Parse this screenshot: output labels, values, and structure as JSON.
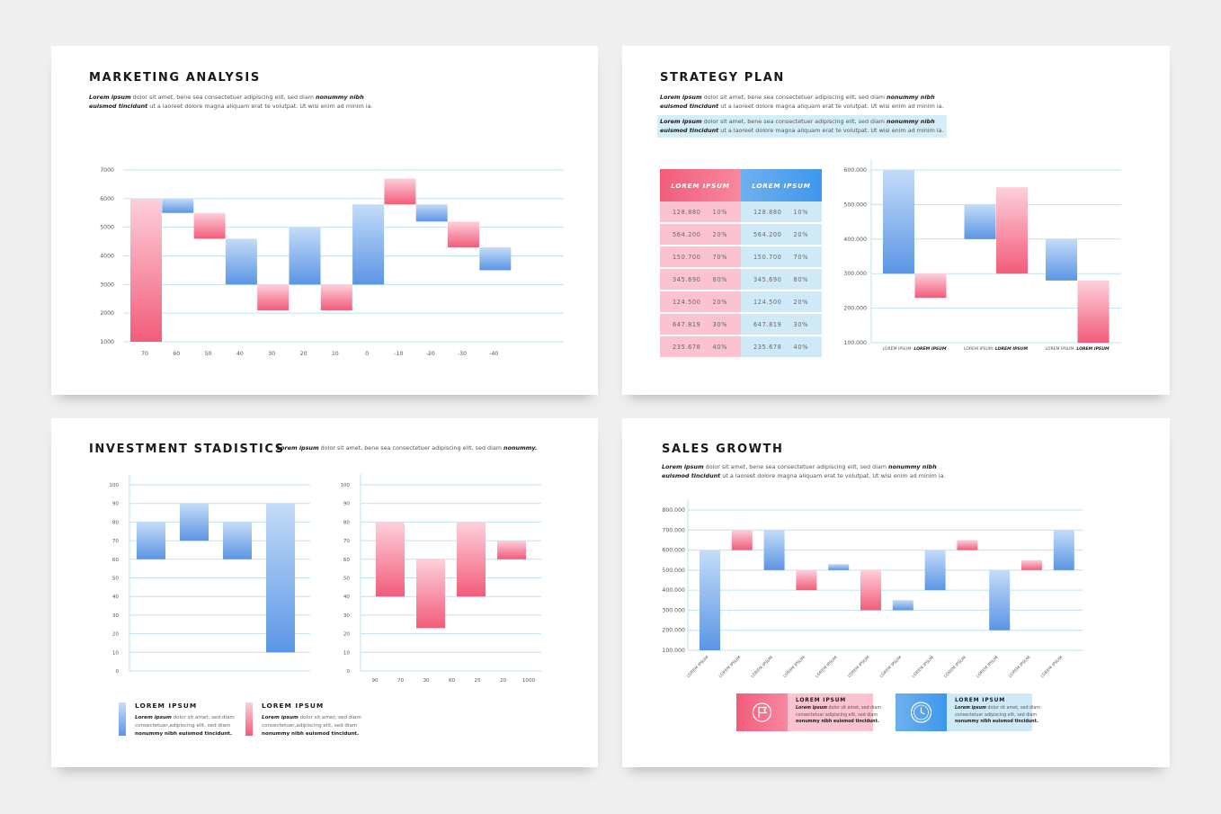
{
  "colors": {
    "pink": "#f25c7a",
    "blue": "#5b95e5",
    "grid": "#bfe2ef",
    "card": "#ffffff",
    "bg": "#efefef"
  },
  "lorem": {
    "bold": "Lorem ipsum",
    "line1": " dolor sit amet, bene sea consectetuer adipiscing elit, sed diam ",
    "bold2": "nonummy nibh",
    "bold3": "euismod tincidunt",
    "line2": " ut a laoreet dolore magna aliquam erat te volutpat. Ut wisi enim ad minim ia."
  },
  "marketing": {
    "title": "MARKETING ANALYSIS",
    "chart_data": {
      "type": "bar",
      "subtype": "waterfall",
      "categories": [
        "70",
        "60",
        "50",
        "40",
        "30",
        "20",
        "10",
        "0",
        "-10",
        "-20",
        "-30",
        "-40"
      ],
      "yticks": [
        "7000",
        "6000",
        "5000",
        "4000",
        "3000",
        "2000",
        "1000"
      ],
      "ylim": [
        1000,
        7000
      ],
      "bars": [
        {
          "from": 1000,
          "to": 6000,
          "color": "pink"
        },
        {
          "from": 5500,
          "to": 6000,
          "color": "blue"
        },
        {
          "from": 4600,
          "to": 5500,
          "color": "pink"
        },
        {
          "from": 3000,
          "to": 4600,
          "color": "blue"
        },
        {
          "from": 2100,
          "to": 3000,
          "color": "pink"
        },
        {
          "from": 3000,
          "to": 5000,
          "color": "blue"
        },
        {
          "from": 2100,
          "to": 3000,
          "color": "pink"
        },
        {
          "from": 3000,
          "to": 5800,
          "color": "blue"
        },
        {
          "from": 5800,
          "to": 6700,
          "color": "pink"
        },
        {
          "from": 5200,
          "to": 5800,
          "color": "blue"
        },
        {
          "from": 4300,
          "to": 5200,
          "color": "pink"
        },
        {
          "from": 3500,
          "to": 4300,
          "color": "blue"
        }
      ]
    }
  },
  "strategy": {
    "title": "STRATEGY PLAN",
    "table": {
      "headers": [
        "LOREM IPSUM",
        "LOREM IPSUM"
      ],
      "rows": [
        [
          "128.880",
          "10%",
          "128.880",
          "10%"
        ],
        [
          "564.200",
          "20%",
          "564.200",
          "20%"
        ],
        [
          "150.700",
          "70%",
          "150.700",
          "70%"
        ],
        [
          "345.690",
          "80%",
          "345.690",
          "80%"
        ],
        [
          "124.500",
          "20%",
          "124.500",
          "20%"
        ],
        [
          "647.819",
          "30%",
          "647.819",
          "30%"
        ],
        [
          "235.678",
          "40%",
          "235.678",
          "40%"
        ]
      ]
    },
    "chart_data": {
      "type": "bar",
      "subtype": "floating",
      "yticks": [
        "600.000",
        "500.000",
        "400.000",
        "300.000",
        "200.000",
        "100.000"
      ],
      "ylim": [
        100000,
        600000
      ],
      "bars": [
        {
          "from": 300000,
          "to": 600000,
          "color": "blue"
        },
        {
          "from": 230000,
          "to": 300000,
          "color": "pink"
        },
        {
          "from": 400000,
          "to": 500000,
          "color": "blue"
        },
        {
          "from": 300000,
          "to": 550000,
          "color": "pink"
        },
        {
          "from": 280000,
          "to": 400000,
          "color": "blue"
        },
        {
          "from": 100000,
          "to": 280000,
          "color": "pink"
        }
      ],
      "group_labels": [
        {
          "a": "LOREM IPSUM",
          "b": "LOREM IPSUM"
        },
        {
          "a": "LOREM IPSUM",
          "b": "LOREM IPSUM"
        },
        {
          "a": "LOREM IPSUM",
          "b": "LOREM IPSUM"
        }
      ]
    }
  },
  "investment": {
    "title": "INVESTMENT STADISTICS",
    "intro_rest": " dolor sit amet, bene sea consectetuer adipiscing elit, sed diam ",
    "intro_bold": "nonummy.",
    "chart_data": [
      {
        "type": "bar",
        "subtype": "floating",
        "yticks": [
          "100",
          "90",
          "80",
          "70",
          "60",
          "50",
          "40",
          "30",
          "20",
          "10",
          "0"
        ],
        "ylim": [
          0,
          100
        ],
        "bars": [
          {
            "from": 60,
            "to": 80,
            "color": "blue"
          },
          {
            "from": 70,
            "to": 90,
            "color": "blue"
          },
          {
            "from": 60,
            "to": 80,
            "color": "blue"
          },
          {
            "from": 10,
            "to": 90,
            "color": "blue"
          }
        ]
      },
      {
        "type": "bar",
        "subtype": "floating",
        "categories": [
          "90",
          "70",
          "30",
          "60",
          "25",
          "20",
          "1000"
        ],
        "yticks": [
          "100",
          "90",
          "80",
          "70",
          "60",
          "50",
          "40",
          "30",
          "20",
          "10",
          "0"
        ],
        "ylim": [
          0,
          100
        ],
        "bars": [
          {
            "from": 40,
            "to": 80,
            "color": "pink"
          },
          {
            "from": 23,
            "to": 60,
            "color": "pink"
          },
          {
            "from": 40,
            "to": 80,
            "color": "pink"
          },
          {
            "from": 60,
            "to": 70,
            "color": "pink"
          }
        ]
      }
    ],
    "legend": [
      {
        "title": "LOREM IPSUM",
        "bold": "Lorem ipsum",
        "l1": " dolor sit amet, sed diam",
        "l2": "consectetuer,adipiscing elit, sed diam",
        "l3": "nonummy nibh euismod tincidunt.",
        "color": "blue"
      },
      {
        "title": "LOREM IPSUM",
        "bold": "Lorem ipsum",
        "l1": " dolor sit amet, sed diam",
        "l2": "consectetuer,adipiscing elit, sed diam",
        "l3": "nonummy nibh euismod tincidunt.",
        "color": "pink"
      }
    ]
  },
  "sales": {
    "title": "SALES GROWTH",
    "chart_data": {
      "type": "bar",
      "subtype": "floating",
      "categories": [
        "LOREM IPSUM",
        "LOREM IPSUM",
        "LOREM IPSUM",
        "LOREM IPSUM",
        "LOREM IPSUM",
        "LOREM IPSUM",
        "LOREM IPSUM",
        "LOREM IPSUM",
        "LOREM IPSUM",
        "LOREM IPSUM",
        "LOREM IPSUM",
        "LOREM IPSUM"
      ],
      "yticks": [
        "800.000",
        "700.000",
        "600.000",
        "500.000",
        "400.000",
        "300.000",
        "200.000",
        "100.000"
      ],
      "ylim": [
        100000,
        800000
      ],
      "bars": [
        {
          "from": 100000,
          "to": 600000,
          "color": "blue"
        },
        {
          "from": 600000,
          "to": 700000,
          "color": "pink"
        },
        {
          "from": 500000,
          "to": 700000,
          "color": "blue"
        },
        {
          "from": 400000,
          "to": 500000,
          "color": "pink"
        },
        {
          "from": 500000,
          "to": 530000,
          "color": "blue"
        },
        {
          "from": 300000,
          "to": 500000,
          "color": "pink"
        },
        {
          "from": 300000,
          "to": 350000,
          "color": "blue"
        },
        {
          "from": 400000,
          "to": 600000,
          "color": "blue"
        },
        {
          "from": 600000,
          "to": 650000,
          "color": "pink"
        },
        {
          "from": 200000,
          "to": 500000,
          "color": "blue"
        },
        {
          "from": 500000,
          "to": 550000,
          "color": "pink"
        },
        {
          "from": 500000,
          "to": 700000,
          "color": "blue"
        }
      ]
    },
    "boxes": [
      {
        "title": "LOREM IPSUM",
        "bold": "Lorem ipsum",
        "l1": " dolor sit amet, sed diam",
        "l2": "consectetuer adipiscing elit, sed diam",
        "l3": "nonummy nibh euismod tincidunt.",
        "icon": "flag-icon"
      },
      {
        "title": "LOREM IPSUM",
        "bold": "Lorem ipsum",
        "l1": " dolor sit amet, sed diam",
        "l2": "consectetuer adipiscing elit, sed diam",
        "l3": "nonummy nibh euismod tincidunt.",
        "icon": "clock-icon"
      }
    ]
  }
}
